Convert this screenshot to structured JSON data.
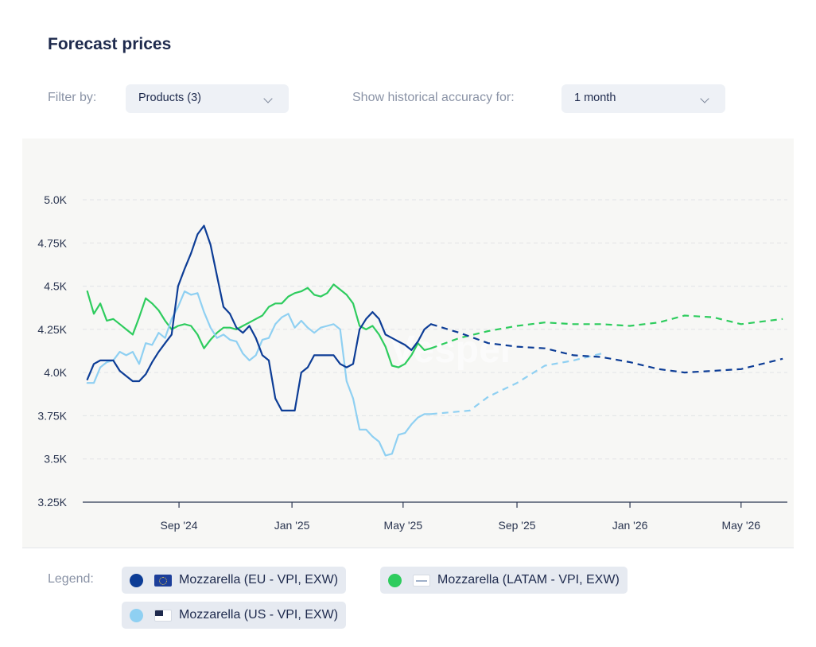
{
  "header": {
    "title": "Forecast prices"
  },
  "filters": {
    "filter_by_label": "Filter by:",
    "products_value": "Products (3)",
    "accuracy_label": "Show historical accuracy for:",
    "accuracy_value": "1 month"
  },
  "legend": {
    "label": "Legend:",
    "items": [
      {
        "label": "Mozzarella (EU - VPI, EXW)",
        "color": "#0d3d96",
        "icon": "eu-flag-icon"
      },
      {
        "label": "Mozzarella (LATAM - VPI, EXW)",
        "color": "#2ecc5e",
        "icon": "latam-flag-icon"
      },
      {
        "label": "Mozzarella (US - VPI, EXW)",
        "color": "#8fd0f2",
        "icon": "us-flag-icon"
      }
    ]
  },
  "chart_data": {
    "type": "line",
    "title": "Forecast prices",
    "xlabel": "",
    "ylabel": "",
    "x_range": [
      "2024-05-20",
      "2026-06-20"
    ],
    "ylim": [
      3250,
      5000
    ],
    "y_ticks": [
      3250,
      3500,
      3750,
      4000,
      4250,
      4500,
      4750,
      5000
    ],
    "y_tick_labels": [
      "3.25K",
      "3.5K",
      "3.75K",
      "4.0K",
      "4.25K",
      "4.5K",
      "4.75K",
      "5.0K"
    ],
    "x_ticks": [
      "2024-09-01",
      "2025-01-01",
      "2025-05-01",
      "2025-09-01",
      "2026-01-01",
      "2026-05-01"
    ],
    "x_tick_labels": [
      "Sep '24",
      "Jan '25",
      "May '25",
      "Sep '25",
      "Jan '26",
      "May '26"
    ],
    "grid": "horizontal dashed",
    "watermark": "Vesper",
    "series": [
      {
        "name": "Mozzarella (EU - VPI, EXW)",
        "color": "#0d3d96",
        "historical": [
          [
            "2024-05-25",
            3960
          ],
          [
            "2024-06-01",
            4050
          ],
          [
            "2024-06-08",
            4070
          ],
          [
            "2024-06-15",
            4070
          ],
          [
            "2024-06-22",
            4070
          ],
          [
            "2024-06-29",
            4010
          ],
          [
            "2024-07-06",
            3980
          ],
          [
            "2024-07-13",
            3950
          ],
          [
            "2024-07-20",
            3950
          ],
          [
            "2024-07-27",
            3990
          ],
          [
            "2024-08-03",
            4060
          ],
          [
            "2024-08-10",
            4120
          ],
          [
            "2024-08-17",
            4170
          ],
          [
            "2024-08-24",
            4220
          ],
          [
            "2024-08-31",
            4500
          ],
          [
            "2024-09-07",
            4600
          ],
          [
            "2024-09-14",
            4690
          ],
          [
            "2024-09-21",
            4800
          ],
          [
            "2024-09-28",
            4850
          ],
          [
            "2024-10-05",
            4740
          ],
          [
            "2024-10-12",
            4560
          ],
          [
            "2024-10-19",
            4380
          ],
          [
            "2024-10-26",
            4340
          ],
          [
            "2024-11-02",
            4260
          ],
          [
            "2024-11-09",
            4230
          ],
          [
            "2024-11-16",
            4270
          ],
          [
            "2024-11-23",
            4200
          ],
          [
            "2024-11-30",
            4100
          ],
          [
            "2024-12-07",
            4070
          ],
          [
            "2024-12-14",
            3850
          ],
          [
            "2024-12-21",
            3780
          ],
          [
            "2024-12-28",
            3780
          ],
          [
            "2025-01-04",
            3780
          ],
          [
            "2025-01-11",
            4000
          ],
          [
            "2025-01-18",
            4030
          ],
          [
            "2025-01-25",
            4100
          ],
          [
            "2025-02-01",
            4100
          ],
          [
            "2025-02-08",
            4100
          ],
          [
            "2025-02-15",
            4100
          ],
          [
            "2025-02-22",
            4050
          ],
          [
            "2025-03-01",
            4030
          ],
          [
            "2025-03-08",
            4050
          ],
          [
            "2025-03-15",
            4250
          ],
          [
            "2025-03-22",
            4310
          ],
          [
            "2025-03-29",
            4350
          ],
          [
            "2025-04-05",
            4310
          ],
          [
            "2025-04-12",
            4220
          ],
          [
            "2025-04-19",
            4200
          ],
          [
            "2025-04-26",
            4180
          ],
          [
            "2025-05-03",
            4160
          ],
          [
            "2025-05-10",
            4130
          ],
          [
            "2025-05-17",
            4180
          ],
          [
            "2025-05-24",
            4250
          ],
          [
            "2025-05-31",
            4280
          ]
        ],
        "forecast": [
          [
            "2025-05-31",
            4280
          ],
          [
            "2025-07-01",
            4230
          ],
          [
            "2025-08-01",
            4170
          ],
          [
            "2025-09-01",
            4150
          ],
          [
            "2025-10-01",
            4140
          ],
          [
            "2025-11-01",
            4100
          ],
          [
            "2025-12-01",
            4090
          ],
          [
            "2026-01-01",
            4060
          ],
          [
            "2026-02-01",
            4020
          ],
          [
            "2026-03-01",
            4000
          ],
          [
            "2026-04-01",
            4010
          ],
          [
            "2026-05-01",
            4020
          ],
          [
            "2026-06-15",
            4080
          ]
        ]
      },
      {
        "name": "Mozzarella (LATAM - VPI, EXW)",
        "color": "#2ecc5e",
        "historical": [
          [
            "2024-05-25",
            4470
          ],
          [
            "2024-06-01",
            4340
          ],
          [
            "2024-06-08",
            4400
          ],
          [
            "2024-06-15",
            4300
          ],
          [
            "2024-06-22",
            4310
          ],
          [
            "2024-06-29",
            4280
          ],
          [
            "2024-07-06",
            4250
          ],
          [
            "2024-07-13",
            4220
          ],
          [
            "2024-07-20",
            4320
          ],
          [
            "2024-07-27",
            4430
          ],
          [
            "2024-08-03",
            4400
          ],
          [
            "2024-08-10",
            4360
          ],
          [
            "2024-08-17",
            4300
          ],
          [
            "2024-08-24",
            4250
          ],
          [
            "2024-08-31",
            4270
          ],
          [
            "2024-09-07",
            4280
          ],
          [
            "2024-09-14",
            4270
          ],
          [
            "2024-09-21",
            4220
          ],
          [
            "2024-09-28",
            4140
          ],
          [
            "2024-10-05",
            4190
          ],
          [
            "2024-10-12",
            4230
          ],
          [
            "2024-10-19",
            4260
          ],
          [
            "2024-10-26",
            4260
          ],
          [
            "2024-11-02",
            4250
          ],
          [
            "2024-11-09",
            4270
          ],
          [
            "2024-11-16",
            4290
          ],
          [
            "2024-11-23",
            4310
          ],
          [
            "2024-11-30",
            4330
          ],
          [
            "2024-12-07",
            4380
          ],
          [
            "2024-12-14",
            4400
          ],
          [
            "2024-12-21",
            4400
          ],
          [
            "2024-12-28",
            4440
          ],
          [
            "2025-01-04",
            4460
          ],
          [
            "2025-01-11",
            4470
          ],
          [
            "2025-01-18",
            4490
          ],
          [
            "2025-01-25",
            4450
          ],
          [
            "2025-02-01",
            4440
          ],
          [
            "2025-02-08",
            4460
          ],
          [
            "2025-02-15",
            4510
          ],
          [
            "2025-02-22",
            4480
          ],
          [
            "2025-03-01",
            4450
          ],
          [
            "2025-03-08",
            4400
          ],
          [
            "2025-03-15",
            4270
          ],
          [
            "2025-03-22",
            4250
          ],
          [
            "2025-03-29",
            4270
          ],
          [
            "2025-04-05",
            4220
          ],
          [
            "2025-04-12",
            4150
          ],
          [
            "2025-04-19",
            4040
          ],
          [
            "2025-04-26",
            4030
          ],
          [
            "2025-05-03",
            4050
          ],
          [
            "2025-05-10",
            4100
          ],
          [
            "2025-05-17",
            4170
          ],
          [
            "2025-05-24",
            4130
          ],
          [
            "2025-05-31",
            4140
          ]
        ],
        "forecast": [
          [
            "2025-05-31",
            4140
          ],
          [
            "2025-07-01",
            4200
          ],
          [
            "2025-08-01",
            4240
          ],
          [
            "2025-09-01",
            4270
          ],
          [
            "2025-10-01",
            4290
          ],
          [
            "2025-11-01",
            4280
          ],
          [
            "2025-12-01",
            4280
          ],
          [
            "2026-01-01",
            4270
          ],
          [
            "2026-02-01",
            4290
          ],
          [
            "2026-03-01",
            4330
          ],
          [
            "2026-04-01",
            4320
          ],
          [
            "2026-05-01",
            4280
          ],
          [
            "2026-06-15",
            4310
          ]
        ]
      },
      {
        "name": "Mozzarella (US - VPI, EXW)",
        "color": "#8fd0f2",
        "historical": [
          [
            "2024-05-25",
            3940
          ],
          [
            "2024-06-01",
            3940
          ],
          [
            "2024-06-08",
            4030
          ],
          [
            "2024-06-15",
            4060
          ],
          [
            "2024-06-22",
            4070
          ],
          [
            "2024-06-29",
            4120
          ],
          [
            "2024-07-06",
            4100
          ],
          [
            "2024-07-13",
            4120
          ],
          [
            "2024-07-20",
            4050
          ],
          [
            "2024-07-27",
            4170
          ],
          [
            "2024-08-03",
            4160
          ],
          [
            "2024-08-10",
            4230
          ],
          [
            "2024-08-17",
            4200
          ],
          [
            "2024-08-24",
            4310
          ],
          [
            "2024-08-31",
            4380
          ],
          [
            "2024-09-07",
            4470
          ],
          [
            "2024-09-14",
            4450
          ],
          [
            "2024-09-21",
            4460
          ],
          [
            "2024-09-28",
            4350
          ],
          [
            "2024-10-05",
            4260
          ],
          [
            "2024-10-12",
            4200
          ],
          [
            "2024-10-19",
            4220
          ],
          [
            "2024-10-26",
            4190
          ],
          [
            "2024-11-02",
            4180
          ],
          [
            "2024-11-09",
            4110
          ],
          [
            "2024-11-16",
            4070
          ],
          [
            "2024-11-23",
            4100
          ],
          [
            "2024-11-30",
            4190
          ],
          [
            "2024-12-07",
            4200
          ],
          [
            "2024-12-14",
            4280
          ],
          [
            "2024-12-21",
            4320
          ],
          [
            "2024-12-28",
            4340
          ],
          [
            "2025-01-04",
            4260
          ],
          [
            "2025-01-11",
            4300
          ],
          [
            "2025-01-18",
            4260
          ],
          [
            "2025-01-25",
            4230
          ],
          [
            "2025-02-01",
            4260
          ],
          [
            "2025-02-08",
            4270
          ],
          [
            "2025-02-15",
            4280
          ],
          [
            "2025-02-22",
            4250
          ],
          [
            "2025-03-01",
            3950
          ],
          [
            "2025-03-08",
            3850
          ],
          [
            "2025-03-15",
            3670
          ],
          [
            "2025-03-22",
            3670
          ],
          [
            "2025-03-29",
            3630
          ],
          [
            "2025-04-05",
            3600
          ],
          [
            "2025-04-12",
            3520
          ],
          [
            "2025-04-19",
            3530
          ],
          [
            "2025-04-26",
            3640
          ],
          [
            "2025-05-03",
            3650
          ],
          [
            "2025-05-10",
            3700
          ],
          [
            "2025-05-17",
            3740
          ],
          [
            "2025-05-24",
            3760
          ],
          [
            "2025-05-31",
            3760
          ]
        ],
        "forecast": [
          [
            "2025-05-31",
            3760
          ],
          [
            "2025-06-21",
            3770
          ],
          [
            "2025-07-12",
            3780
          ],
          [
            "2025-08-01",
            3860
          ],
          [
            "2025-09-01",
            3940
          ],
          [
            "2025-10-01",
            4040
          ],
          [
            "2025-11-01",
            4070
          ],
          [
            "2025-12-01",
            4110
          ]
        ]
      }
    ]
  }
}
